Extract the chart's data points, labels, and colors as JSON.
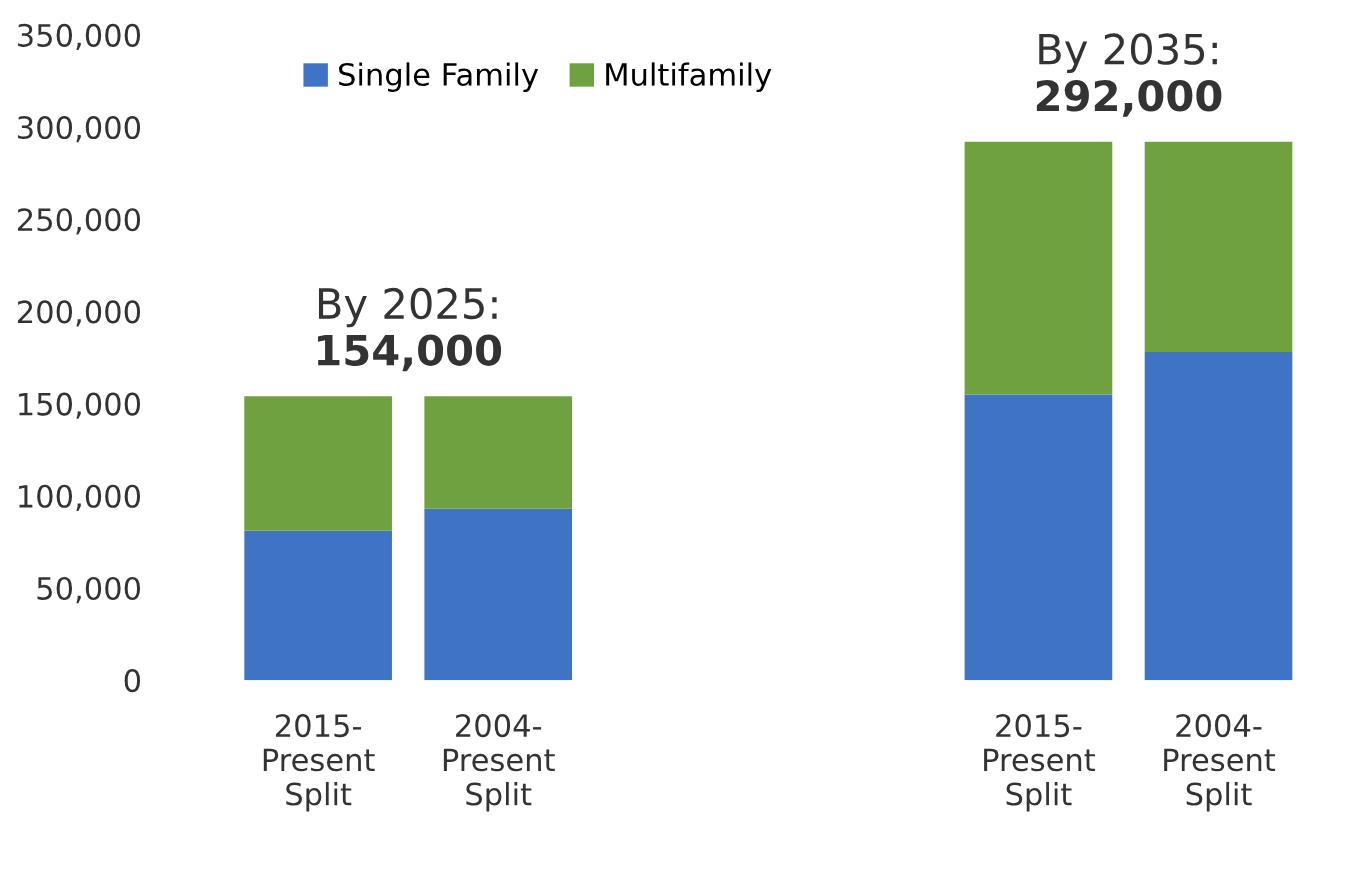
{
  "chart_data": {
    "type": "bar",
    "stacked": true,
    "categories": [
      "2015-\nPresent\nSplit",
      "2004-\nPresent\nSplit",
      null,
      null,
      "2015-\nPresent\nSplit",
      "2004-\nPresent\nSplit"
    ],
    "series": [
      {
        "name": "Single Family",
        "color": "#3f74c4",
        "values": [
          81000,
          93000,
          null,
          null,
          155000,
          178000
        ]
      },
      {
        "name": "Multifamily",
        "color": "#6fa23e",
        "values": [
          73000,
          61000,
          null,
          null,
          137000,
          114000
        ]
      }
    ],
    "ylim": [
      0,
      350000
    ],
    "yticks": [
      {
        "value": 0,
        "label": "0"
      },
      {
        "value": 50000,
        "label": "50,000"
      },
      {
        "value": 100000,
        "label": "100,000"
      },
      {
        "value": 150000,
        "label": "150,000"
      },
      {
        "value": 200000,
        "label": "200,000"
      },
      {
        "value": 250000,
        "label": "250,000"
      },
      {
        "value": 300000,
        "label": "300,000"
      },
      {
        "value": 350000,
        "label": "350,000"
      }
    ],
    "annotations": [
      "By 2025:\n154,000",
      "By 2035:\n292,000"
    ],
    "grid": false,
    "legend": "top"
  }
}
